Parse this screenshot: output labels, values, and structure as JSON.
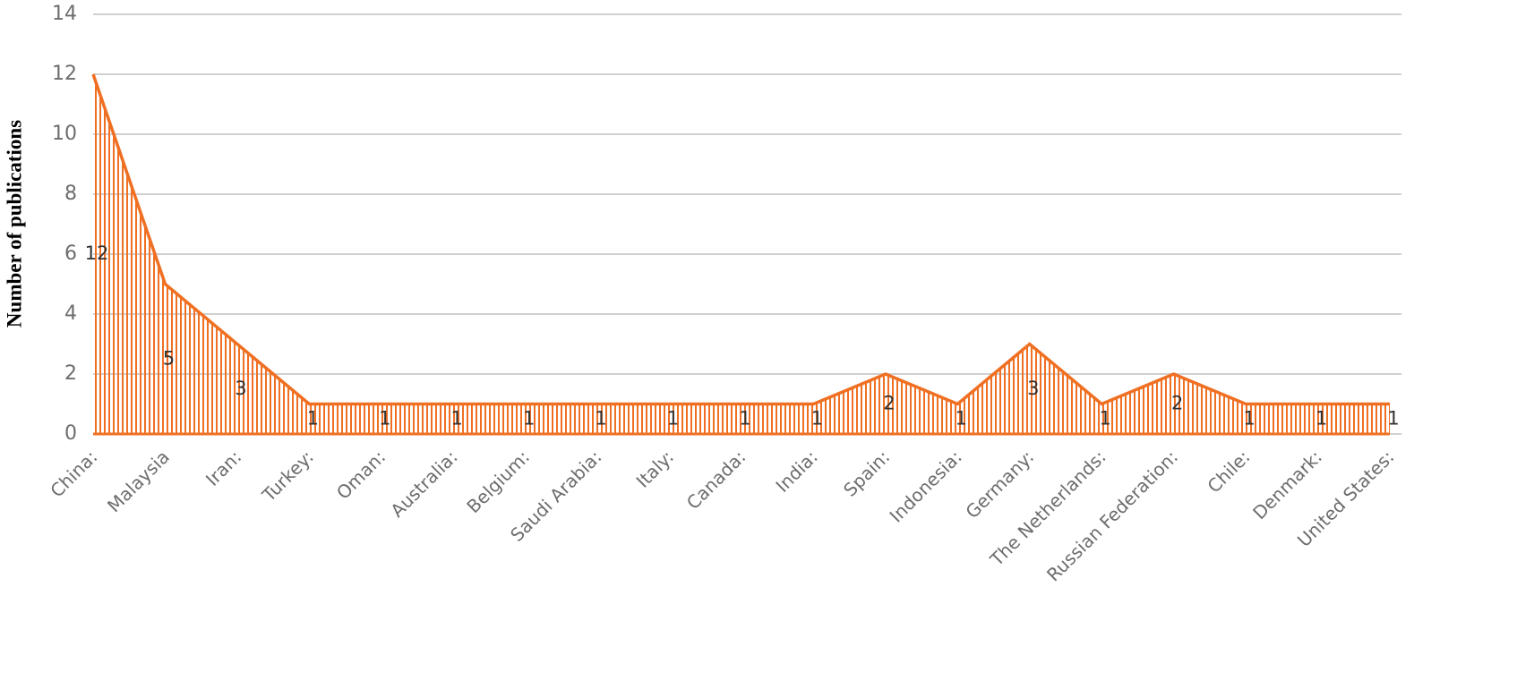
{
  "chart_data": {
    "type": "area",
    "y_label": "Number of publications",
    "categories": [
      "China:",
      "Malaysia",
      "Iran:",
      "Turkey:",
      "Oman:",
      "Australia:",
      "Belgium:",
      "Saudi Arabia:",
      "Italy:",
      "Canada:",
      "India:",
      "Spain:",
      "Indonesia:",
      "Germany:",
      "The Netherlands:",
      "Russian Federation:",
      "Chile:",
      "Denmark:",
      "United States:"
    ],
    "values": [
      12,
      5,
      3,
      1,
      1,
      1,
      1,
      1,
      1,
      1,
      1,
      2,
      1,
      3,
      1,
      2,
      1,
      1,
      1
    ],
    "color": "#f07023",
    "ylim": [
      0,
      14
    ],
    "yticks": [
      0,
      2,
      4,
      6,
      8,
      10,
      12,
      14
    ],
    "grid": true
  }
}
